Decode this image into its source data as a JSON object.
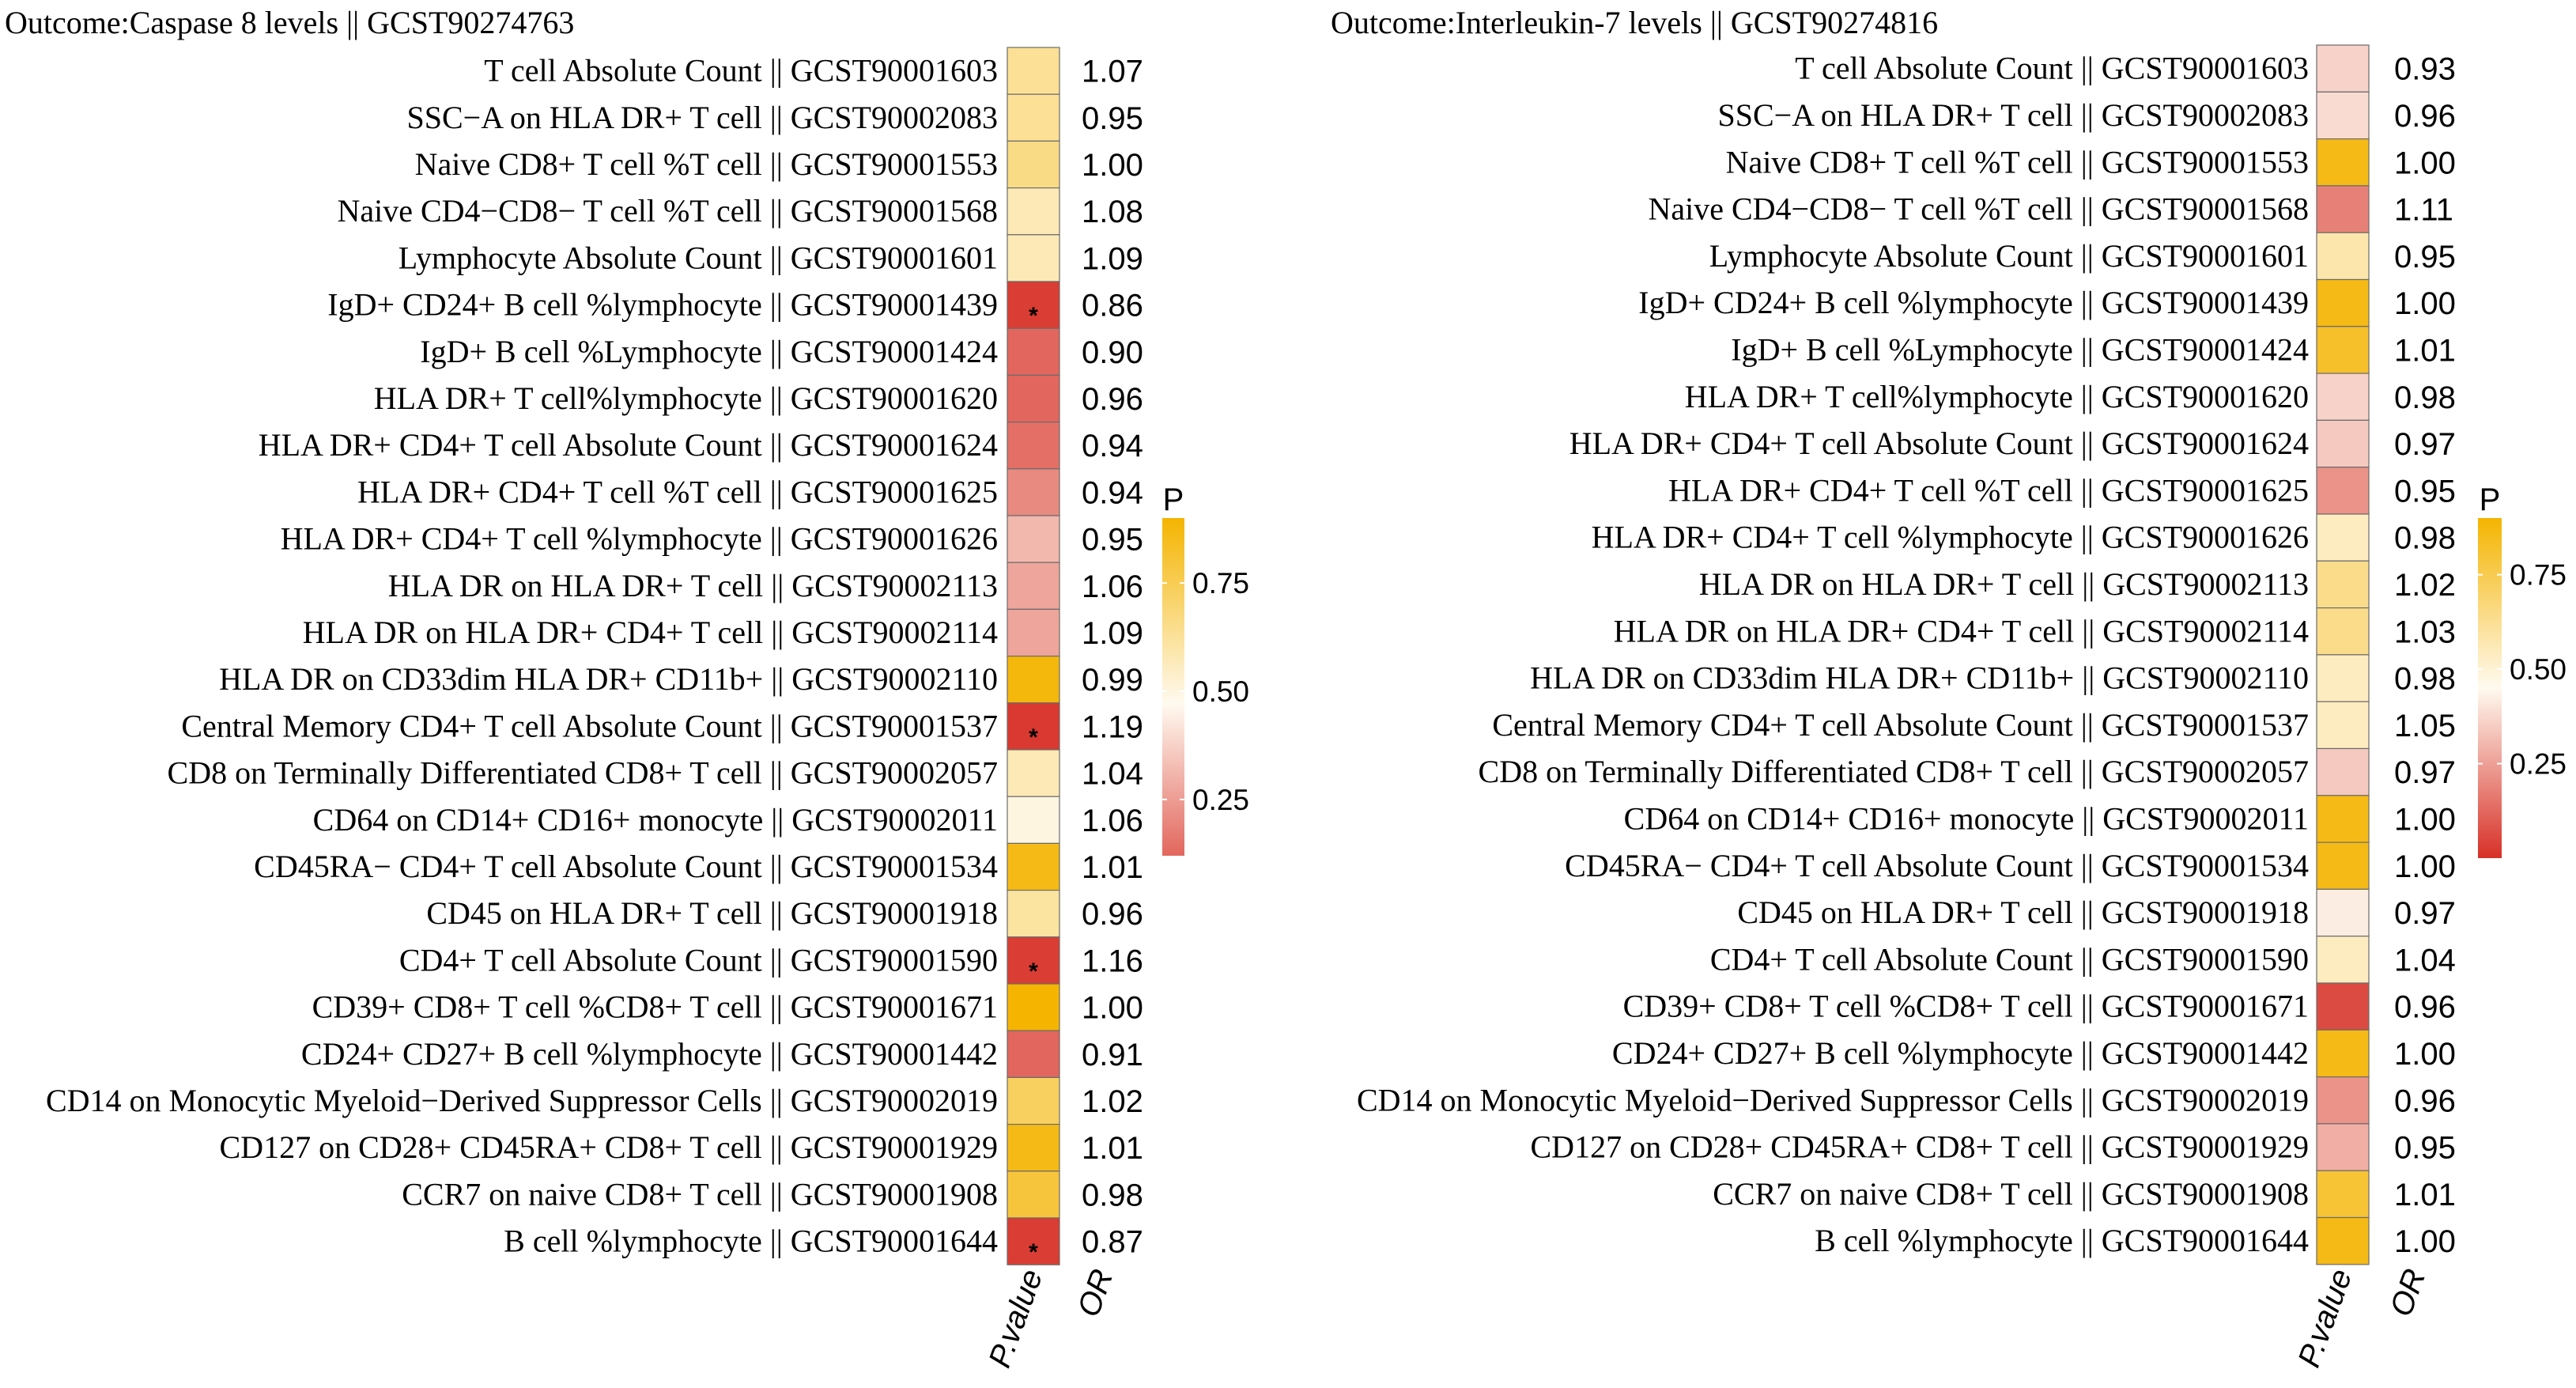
{
  "colors": {
    "low": "#d73027",
    "mid": "#fffaf0",
    "high": "#f4b400",
    "cell_border": "#6b6b6b",
    "star": "#000000"
  },
  "chart_data": [
    {
      "type": "heatmap",
      "title": "Outcome:Caspase 8 levels || GCST90274763",
      "columns": [
        "P.value",
        "OR"
      ],
      "legend": {
        "title": "P",
        "ticks": [
          0.25,
          0.5,
          0.75
        ],
        "tick_labels": [
          "0.25",
          "0.50",
          "0.75"
        ],
        "range": [
          0.0,
          0.9
        ]
      },
      "rows": [
        {
          "label": "T cell Absolute Count || GCST90001603",
          "p": 0.62,
          "or": "1.07",
          "sig": ""
        },
        {
          "label": "SSC−A on HLA DR+ T cell || GCST90002083",
          "p": 0.62,
          "or": "0.95",
          "sig": ""
        },
        {
          "label": "Naive CD8+ T cell %T cell || GCST90001553",
          "p": 0.65,
          "or": "1.00",
          "sig": ""
        },
        {
          "label": "Naive CD4−CD8− T cell %T cell || GCST90001568",
          "p": 0.56,
          "or": "1.08",
          "sig": ""
        },
        {
          "label": "Lymphocyte Absolute Count || GCST90001601",
          "p": 0.56,
          "or": "1.09",
          "sig": ""
        },
        {
          "label": "IgD+ CD24+ B cell %lymphocyte || GCST90001439",
          "p": 0.03,
          "or": "0.86",
          "sig": "*"
        },
        {
          "label": "IgD+ B cell %Lymphocyte || GCST90001424",
          "p": 0.12,
          "or": "0.90",
          "sig": ""
        },
        {
          "label": "HLA DR+ T cell%lymphocyte || GCST90001620",
          "p": 0.12,
          "or": "0.96",
          "sig": ""
        },
        {
          "label": "HLA DR+ CD4+ T cell Absolute Count || GCST90001624",
          "p": 0.14,
          "or": "0.94",
          "sig": ""
        },
        {
          "label": "HLA DR+ CD4+ T cell %T cell || GCST90001625",
          "p": 0.2,
          "or": "0.94",
          "sig": ""
        },
        {
          "label": "HLA DR+ CD4+ T cell %lymphocyte || GCST90001626",
          "p": 0.3,
          "or": "0.95",
          "sig": ""
        },
        {
          "label": "HLA DR on HLA DR+ T cell || GCST90002113",
          "p": 0.26,
          "or": "1.06",
          "sig": ""
        },
        {
          "label": "HLA DR on HLA DR+ CD4+ T cell || GCST90002114",
          "p": 0.26,
          "or": "1.09",
          "sig": ""
        },
        {
          "label": "HLA DR on CD33dim HLA DR+ CD11b+ || GCST90002110",
          "p": 0.88,
          "or": "0.99",
          "sig": ""
        },
        {
          "label": "Central Memory CD4+ T cell Absolute Count || GCST90001537",
          "p": 0.02,
          "or": "1.19",
          "sig": "*"
        },
        {
          "label": "CD8 on Terminally Differentiated CD8+ T cell || GCST90002057",
          "p": 0.56,
          "or": "1.04",
          "sig": ""
        },
        {
          "label": "CD64 on CD14+ CD16+ monocyte || GCST90002011",
          "p": 0.48,
          "or": "1.06",
          "sig": ""
        },
        {
          "label": "CD45RA− CD4+ T cell Absolute Count || GCST90001534",
          "p": 0.86,
          "or": "1.01",
          "sig": ""
        },
        {
          "label": "CD45 on HLA DR+ T cell || GCST90001918",
          "p": 0.6,
          "or": "0.96",
          "sig": ""
        },
        {
          "label": "CD4+ T cell Absolute Count || GCST90001590",
          "p": 0.03,
          "or": "1.16",
          "sig": "*"
        },
        {
          "label": "CD39+ CD8+ T cell %CD8+ T cell || GCST90001671",
          "p": 0.93,
          "or": "1.00",
          "sig": ""
        },
        {
          "label": "CD24+ CD27+ B cell %lymphocyte || GCST90001442",
          "p": 0.12,
          "or": "0.91",
          "sig": ""
        },
        {
          "label": "CD14 on Monocytic Myeloid−Derived Suppressor Cells || GCST90002019",
          "p": 0.72,
          "or": "1.02",
          "sig": ""
        },
        {
          "label": "CD127 on CD28+ CD45RA+ CD8+ T cell || GCST90001929",
          "p": 0.86,
          "or": "1.01",
          "sig": ""
        },
        {
          "label": "CCR7 on naive CD8+ T cell || GCST90001908",
          "p": 0.79,
          "or": "0.98",
          "sig": ""
        },
        {
          "label": "B cell %lymphocyte || GCST90001644",
          "p": 0.03,
          "or": "0.87",
          "sig": "*"
        }
      ]
    },
    {
      "type": "heatmap",
      "title": "Outcome:Interleukin-7 levels || GCST90274816",
      "columns": [
        "P.value",
        "OR"
      ],
      "legend": {
        "title": "P",
        "ticks": [
          0.25,
          0.5,
          0.75
        ],
        "tick_labels": [
          "0.25",
          "0.50",
          "0.75"
        ],
        "range": [
          0.0,
          0.9
        ]
      },
      "rows": [
        {
          "label": "T cell Absolute Count || GCST90001603",
          "p": 0.36,
          "or": "0.93",
          "sig": ""
        },
        {
          "label": "SSC−A on HLA DR+ T cell || GCST90002083",
          "p": 0.38,
          "or": "0.96",
          "sig": ""
        },
        {
          "label": "Naive CD8+ T cell %T cell || GCST90001553",
          "p": 0.86,
          "or": "1.00",
          "sig": ""
        },
        {
          "label": "Naive CD4−CD8− T cell %T cell || GCST90001568",
          "p": 0.18,
          "or": "1.11",
          "sig": ""
        },
        {
          "label": "Lymphocyte Absolute Count || GCST90001601",
          "p": 0.58,
          "or": "0.95",
          "sig": ""
        },
        {
          "label": "IgD+ CD24+ B cell %lymphocyte || GCST90001439",
          "p": 0.86,
          "or": "1.00",
          "sig": ""
        },
        {
          "label": "IgD+ B cell %Lymphocyte || GCST90001424",
          "p": 0.82,
          "or": "1.01",
          "sig": ""
        },
        {
          "label": "HLA DR+ T cell%lymphocyte || GCST90001620",
          "p": 0.36,
          "or": "0.98",
          "sig": ""
        },
        {
          "label": "HLA DR+ CD4+ T cell Absolute Count || GCST90001624",
          "p": 0.34,
          "or": "0.97",
          "sig": ""
        },
        {
          "label": "HLA DR+ CD4+ T cell %T cell || GCST90001625",
          "p": 0.22,
          "or": "0.95",
          "sig": ""
        },
        {
          "label": "HLA DR+ CD4+ T cell %lymphocyte || GCST90001626",
          "p": 0.54,
          "or": "0.98",
          "sig": ""
        },
        {
          "label": "HLA DR on HLA DR+ T cell || GCST90002113",
          "p": 0.64,
          "or": "1.02",
          "sig": ""
        },
        {
          "label": "HLA DR on HLA DR+ CD4+ T cell || GCST90002114",
          "p": 0.64,
          "or": "1.03",
          "sig": ""
        },
        {
          "label": "HLA DR on CD33dim HLA DR+ CD11b+ || GCST90002110",
          "p": 0.54,
          "or": "0.98",
          "sig": ""
        },
        {
          "label": "Central Memory CD4+ T cell Absolute Count || GCST90001537",
          "p": 0.54,
          "or": "1.05",
          "sig": ""
        },
        {
          "label": "CD8 on Terminally Differentiated CD8+ T cell || GCST90002057",
          "p": 0.34,
          "or": "0.97",
          "sig": ""
        },
        {
          "label": "CD64 on CD14+ CD16+ monocyte || GCST90002011",
          "p": 0.86,
          "or": "1.00",
          "sig": ""
        },
        {
          "label": "CD45RA− CD4+ T cell Absolute Count || GCST90001534",
          "p": 0.86,
          "or": "1.00",
          "sig": ""
        },
        {
          "label": "CD45 on HLA DR+ T cell || GCST90001918",
          "p": 0.42,
          "or": "0.97",
          "sig": ""
        },
        {
          "label": "CD4+ T cell Absolute Count || GCST90001590",
          "p": 0.54,
          "or": "1.04",
          "sig": ""
        },
        {
          "label": "CD39+ CD8+ T cell %CD8+ T cell || GCST90001671",
          "p": 0.06,
          "or": "0.96",
          "sig": ""
        },
        {
          "label": "CD24+ CD27+ B cell %lymphocyte || GCST90001442",
          "p": 0.86,
          "or": "1.00",
          "sig": ""
        },
        {
          "label": "CD14 on Monocytic Myeloid−Derived Suppressor Cells || GCST90002019",
          "p": 0.22,
          "or": "0.96",
          "sig": ""
        },
        {
          "label": "CD127 on CD28+ CD45RA+ CD8+ T cell || GCST90001929",
          "p": 0.28,
          "or": "0.95",
          "sig": ""
        },
        {
          "label": "CCR7 on naive CD8+ T cell || GCST90001908",
          "p": 0.8,
          "or": "1.01",
          "sig": ""
        },
        {
          "label": "B cell %lymphocyte || GCST90001644",
          "p": 0.86,
          "or": "1.00",
          "sig": ""
        }
      ]
    }
  ]
}
